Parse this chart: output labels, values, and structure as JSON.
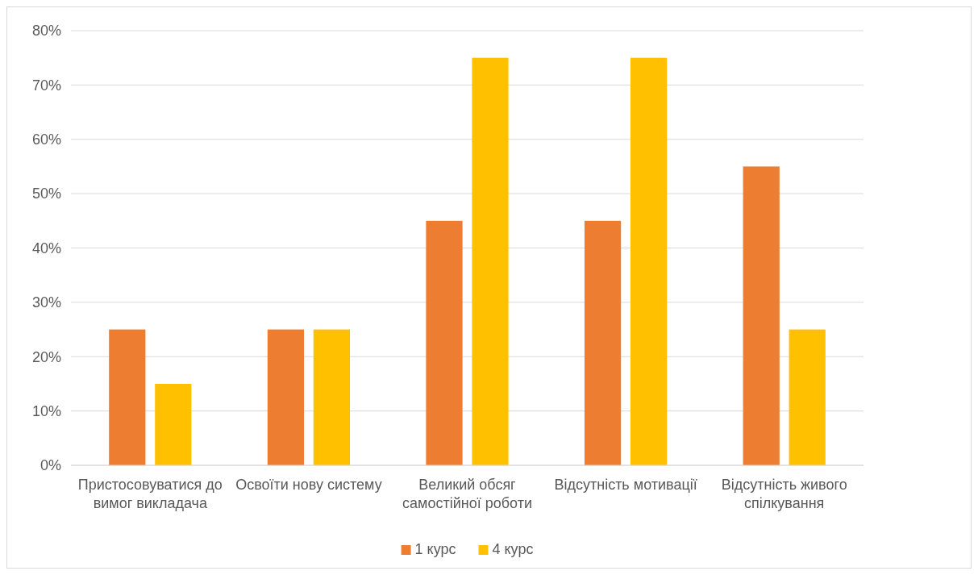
{
  "chart_data": {
    "type": "bar",
    "categories": [
      "Пристосовуватися до вимог викладача",
      "Освоїти нову систему",
      "Великий обсяг самостійної роботи",
      "Відсутність мотивації",
      "Відсутність живого спілкування"
    ],
    "series": [
      {
        "name": "1 курс",
        "color": "#ed7d31",
        "values": [
          25,
          25,
          45,
          45,
          55
        ]
      },
      {
        "name": "4 курс",
        "color": "#ffc000",
        "values": [
          15,
          25,
          75,
          75,
          25
        ]
      }
    ],
    "ylim": [
      0,
      80
    ],
    "yticks": [
      {
        "value": 0,
        "label": "0%"
      },
      {
        "value": 10,
        "label": "10%"
      },
      {
        "value": 20,
        "label": "20%"
      },
      {
        "value": 30,
        "label": "30%"
      },
      {
        "value": 40,
        "label": "40%"
      },
      {
        "value": 50,
        "label": "50%"
      },
      {
        "value": 60,
        "label": "60%"
      },
      {
        "value": 70,
        "label": "70%"
      },
      {
        "value": 80,
        "label": "80%"
      }
    ],
    "grid": true,
    "legend": "bottom"
  }
}
